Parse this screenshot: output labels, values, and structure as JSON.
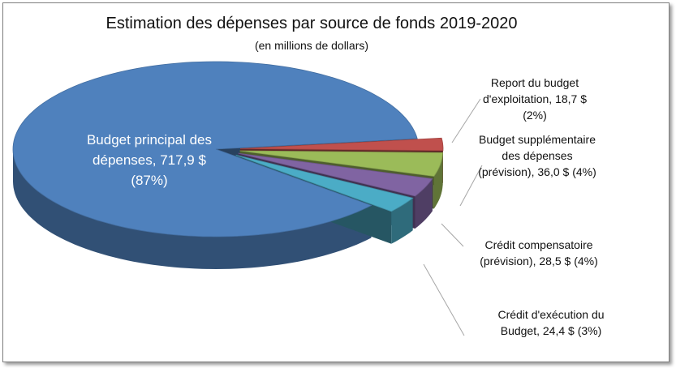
{
  "chart_data": {
    "type": "pie",
    "title": "Estimation des dépenses par source de fonds 2019-2020",
    "subtitle": "(en millions de dollars)",
    "categories": [
      "Budget principal des dépenses,",
      "Report du budget d'exploitation,",
      "Budget supplémentaire des dépenses (prévision),",
      "Crédit compensatoire (prévision),",
      "Crédit d'exécution du Budget,"
    ],
    "values": [
      717.9,
      18.7,
      36.0,
      28.5,
      24.4
    ],
    "value_labels": [
      "717,9 $ (87%)",
      "18,7 $ (2%)",
      "36,0 $ (4%)",
      "28,5 $ (4%)",
      "24,4 $ (3%)"
    ],
    "colors": [
      "#4f81bd",
      "#c0504d",
      "#9bbb59",
      "#8064a2",
      "#4bacc6"
    ]
  }
}
